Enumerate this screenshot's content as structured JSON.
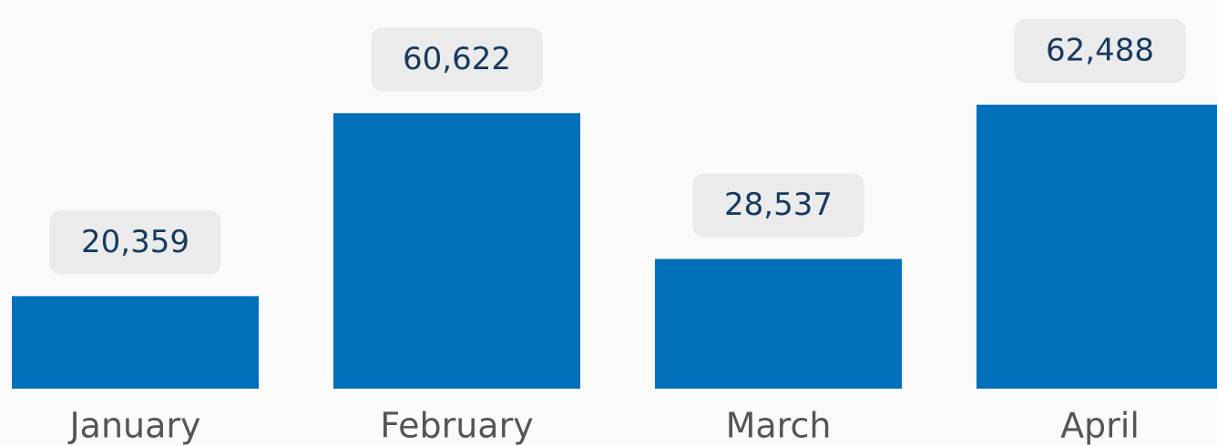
{
  "chart_data": {
    "type": "bar",
    "categories": [
      "January",
      "February",
      "March",
      "April"
    ],
    "values": [
      20359,
      60622,
      28537,
      62488
    ],
    "value_labels": [
      "20,359",
      "60,622",
      "28,537",
      "62,488"
    ],
    "color": "#0070ba"
  }
}
